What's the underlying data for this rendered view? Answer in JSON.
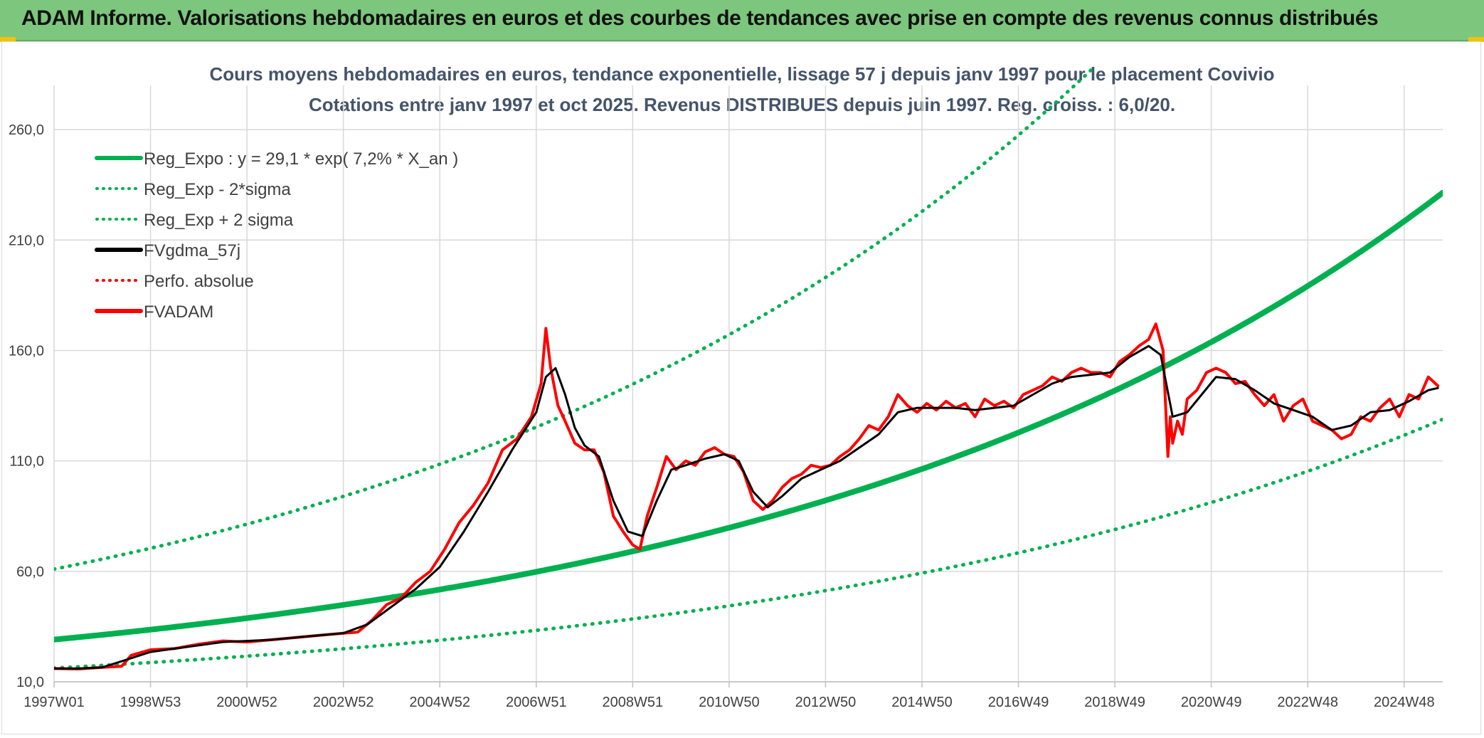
{
  "header": {
    "title": "ADAM Informe. Valorisations hebdomadaires en euros et des courbes de tendances avec prise en compte des revenus connus distribués"
  },
  "colors": {
    "banner": "#7dc67d",
    "trend": "#00b050",
    "price": "#ff0000",
    "smooth": "#000000",
    "grid": "#d9d9d9"
  },
  "chart_data": {
    "type": "line",
    "title": "Cours moyens hebdomadaires en euros, tendance exponentielle, lissage 57 j depuis janv 1997 pour le placement Covivio",
    "subtitle": "Cotations entre janv 1997 et oct 2025. Revenus DISTRIBUES depuis juin 1997. Reg. croiss. : 6,0/20.",
    "xlabel": "",
    "ylabel": "",
    "x_range": [
      1997.0,
      2025.8
    ],
    "ylim": [
      10,
      280
    ],
    "y_ticks": [
      10,
      60,
      110,
      160,
      210,
      260
    ],
    "y_tick_labels": [
      "10,0",
      "60,0",
      "110,0",
      "160,0",
      "210,0",
      "260,0"
    ],
    "x_ticks": [
      1997.0,
      1999.0,
      2001.0,
      2003.0,
      2005.0,
      2007.0,
      2009.0,
      2011.0,
      2013.0,
      2015.0,
      2017.0,
      2019.0,
      2021.0,
      2023.0,
      2025.0
    ],
    "x_tick_labels": [
      "1997W01",
      "1998W53",
      "2000W52",
      "2002W52",
      "2004W52",
      "2006W51",
      "2008W51",
      "2010W50",
      "2012W50",
      "2014W50",
      "2016W49",
      "2018W49",
      "2020W49",
      "2022W48",
      "2024W48"
    ],
    "grid": true,
    "legend_position": "top-left",
    "legend": [
      {
        "label": "Reg_Expo : y = 29,1 * exp( 7,2% *  X_an )",
        "color": "#00b050",
        "style": "solid"
      },
      {
        "label": "Reg_Exp - 2*sigma",
        "color": "#00b050",
        "style": "dotted"
      },
      {
        "label": "Reg_Exp + 2 sigma",
        "color": "#00b050",
        "style": "dotted"
      },
      {
        "label": "FVgdma_57j",
        "color": "#000000",
        "style": "solid"
      },
      {
        "label": "Perfo. absolue",
        "color": "#ff0000",
        "style": "dotted"
      },
      {
        "label": "FVADAM",
        "color": "#ff0000",
        "style": "solid"
      }
    ],
    "series": [
      {
        "name": "Reg_Expo",
        "kind": "exp",
        "a": 29.1,
        "b": 0.072,
        "x0": 1997.0,
        "color": "#00b050",
        "style": "solid"
      },
      {
        "name": "Reg_Exp - 2*sigma",
        "kind": "exp",
        "a": 16.2,
        "b": 0.072,
        "x0": 1997.0,
        "color": "#00b050",
        "style": "dotted"
      },
      {
        "name": "Reg_Exp + 2 sigma",
        "kind": "exp",
        "a": 61.0,
        "b": 0.072,
        "x0": 1997.0,
        "color": "#00b050",
        "style": "dotted"
      },
      {
        "name": "FVADAM",
        "color": "#ff0000",
        "style": "solid",
        "x": [
          1997.0,
          1997.5,
          1998.0,
          1998.4,
          1998.6,
          1999.0,
          1999.5,
          2000.0,
          2000.5,
          2001.0,
          2001.5,
          2002.0,
          2002.5,
          2003.0,
          2003.3,
          2003.6,
          2003.9,
          2004.2,
          2004.5,
          2004.8,
          2005.1,
          2005.4,
          2005.7,
          2006.0,
          2006.3,
          2006.6,
          2006.9,
          2007.1,
          2007.2,
          2007.3,
          2007.45,
          2007.6,
          2007.8,
          2008.0,
          2008.2,
          2008.4,
          2008.6,
          2008.8,
          2009.0,
          2009.15,
          2009.3,
          2009.5,
          2009.7,
          2009.9,
          2010.1,
          2010.3,
          2010.5,
          2010.7,
          2010.9,
          2011.1,
          2011.3,
          2011.5,
          2011.7,
          2011.9,
          2012.1,
          2012.3,
          2012.5,
          2012.7,
          2012.9,
          2013.1,
          2013.3,
          2013.5,
          2013.7,
          2013.9,
          2014.1,
          2014.3,
          2014.5,
          2014.7,
          2014.9,
          2015.1,
          2015.3,
          2015.5,
          2015.7,
          2015.9,
          2016.1,
          2016.3,
          2016.5,
          2016.7,
          2016.9,
          2017.1,
          2017.3,
          2017.5,
          2017.7,
          2017.9,
          2018.1,
          2018.3,
          2018.5,
          2018.7,
          2018.9,
          2019.1,
          2019.3,
          2019.5,
          2019.7,
          2019.85,
          2020.0,
          2020.1,
          2020.15,
          2020.2,
          2020.3,
          2020.4,
          2020.5,
          2020.7,
          2020.9,
          2021.1,
          2021.3,
          2021.5,
          2021.7,
          2021.9,
          2022.1,
          2022.3,
          2022.5,
          2022.7,
          2022.9,
          2023.1,
          2023.3,
          2023.5,
          2023.7,
          2023.9,
          2024.1,
          2024.3,
          2024.5,
          2024.7,
          2024.9,
          2025.1,
          2025.3,
          2025.5,
          2025.7
        ],
        "y": [
          16.0,
          15.8,
          16.5,
          17.0,
          22.0,
          24.5,
          25.0,
          27.0,
          28.5,
          28.0,
          29.0,
          30.0,
          31.0,
          32.0,
          32.5,
          38.0,
          45.0,
          48.0,
          55.0,
          60.0,
          70.0,
          82.0,
          90.0,
          100.0,
          115.0,
          120.0,
          130.0,
          145.0,
          170.0,
          152.0,
          135.0,
          128.0,
          118.0,
          115.0,
          115.0,
          105.0,
          85.0,
          78.0,
          72.0,
          70.0,
          85.0,
          98.0,
          112.0,
          106.0,
          110.0,
          108.0,
          114.0,
          116.0,
          113.0,
          112.0,
          105.0,
          92.0,
          88.0,
          92.0,
          98.0,
          102.0,
          104.0,
          108.0,
          107.0,
          108.0,
          112.0,
          115.0,
          120.0,
          126.0,
          124.0,
          130.0,
          140.0,
          135.0,
          132.0,
          136.0,
          133.0,
          137.0,
          134.0,
          136.0,
          130.0,
          138.0,
          135.0,
          137.0,
          134.0,
          140.0,
          142.0,
          144.0,
          148.0,
          146.0,
          150.0,
          152.0,
          150.0,
          150.0,
          148.0,
          155.0,
          158.0,
          162.0,
          165.0,
          172.0,
          160.0,
          112.0,
          130.0,
          118.0,
          128.0,
          122.0,
          138.0,
          142.0,
          150.0,
          152.0,
          150.0,
          145.0,
          146.0,
          140.0,
          135.0,
          140.0,
          128.0,
          135.0,
          138.0,
          128.0,
          126.0,
          124.0,
          120.0,
          122.0,
          130.0,
          128.0,
          134.0,
          138.0,
          130.0,
          140.0,
          138.0,
          148.0,
          144.0
        ]
      },
      {
        "name": "FVgdma_57j",
        "color": "#000000",
        "style": "solid",
        "x": [
          1997.0,
          1997.5,
          1998.0,
          1998.5,
          1999.0,
          1999.5,
          2000.0,
          2000.5,
          2001.0,
          2001.5,
          2002.0,
          2002.5,
          2003.0,
          2003.5,
          2004.0,
          2004.5,
          2005.0,
          2005.5,
          2006.0,
          2006.5,
          2007.0,
          2007.2,
          2007.4,
          2007.6,
          2007.8,
          2008.0,
          2008.3,
          2008.6,
          2008.9,
          2009.2,
          2009.5,
          2009.8,
          2010.1,
          2010.5,
          2010.9,
          2011.2,
          2011.5,
          2011.8,
          2012.1,
          2012.5,
          2012.9,
          2013.3,
          2013.7,
          2014.1,
          2014.5,
          2014.9,
          2015.3,
          2015.7,
          2016.1,
          2016.5,
          2016.9,
          2017.3,
          2017.7,
          2018.1,
          2018.5,
          2018.9,
          2019.3,
          2019.7,
          2019.95,
          2020.2,
          2020.5,
          2020.8,
          2021.1,
          2021.5,
          2021.9,
          2022.3,
          2022.7,
          2023.1,
          2023.5,
          2023.9,
          2024.3,
          2024.7,
          2025.1,
          2025.5,
          2025.7
        ],
        "y": [
          16.0,
          16.0,
          16.5,
          20.0,
          23.5,
          25.0,
          26.5,
          28.0,
          28.5,
          29.0,
          30.0,
          31.0,
          32.0,
          36.0,
          44.0,
          52.0,
          62.0,
          78.0,
          96.0,
          115.0,
          132.0,
          148.0,
          152.0,
          140.0,
          125.0,
          117.0,
          112.0,
          92.0,
          78.0,
          76.0,
          92.0,
          106.0,
          108.0,
          111.0,
          113.0,
          110.0,
          96.0,
          89.0,
          94.0,
          102.0,
          106.0,
          110.0,
          116.0,
          122.0,
          132.0,
          134.0,
          134.0,
          134.0,
          133.0,
          134.0,
          135.0,
          140.0,
          145.0,
          148.0,
          149.0,
          150.0,
          157.0,
          162.0,
          158.0,
          130.0,
          132.0,
          140.0,
          148.0,
          147.0,
          142.0,
          136.0,
          133.0,
          130.0,
          124.0,
          126.0,
          132.0,
          133.0,
          137.0,
          142.0,
          143.0
        ]
      }
    ]
  }
}
